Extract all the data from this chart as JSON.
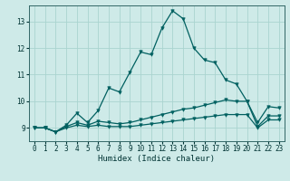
{
  "xlabel": "Humidex (Indice chaleur)",
  "background_color": "#ceeae8",
  "grid_color": "#aad4d0",
  "line_color": "#006060",
  "xlim": [
    -0.5,
    23.5
  ],
  "ylim": [
    8.5,
    13.6
  ],
  "yticks": [
    9,
    10,
    11,
    12,
    13
  ],
  "xticks": [
    0,
    1,
    2,
    3,
    4,
    5,
    6,
    7,
    8,
    9,
    10,
    11,
    12,
    13,
    14,
    15,
    16,
    17,
    18,
    19,
    20,
    21,
    22,
    23
  ],
  "series_main_x": [
    0,
    1,
    2,
    3,
    4,
    5,
    6,
    7,
    8,
    9,
    10,
    11,
    12,
    13,
    14,
    15,
    16,
    17,
    18,
    19,
    20,
    21,
    22,
    23
  ],
  "series_main_y": [
    9.0,
    9.0,
    8.85,
    9.1,
    9.55,
    9.2,
    9.65,
    10.5,
    10.35,
    11.1,
    11.85,
    11.75,
    12.75,
    13.4,
    13.1,
    12.0,
    11.55,
    11.45,
    10.8,
    10.65,
    10.0,
    9.2,
    9.8,
    9.75
  ],
  "series_mid_x": [
    0,
    1,
    2,
    3,
    4,
    5,
    6,
    7,
    8,
    9,
    10,
    11,
    12,
    13,
    14,
    15,
    16,
    17,
    18,
    19,
    20,
    21,
    22,
    23
  ],
  "series_mid_y": [
    9.0,
    9.0,
    8.85,
    9.05,
    9.2,
    9.1,
    9.25,
    9.2,
    9.15,
    9.2,
    9.3,
    9.4,
    9.5,
    9.6,
    9.7,
    9.75,
    9.85,
    9.95,
    10.05,
    10.0,
    10.0,
    9.05,
    9.45,
    9.45
  ],
  "series_flat_x": [
    0,
    1,
    2,
    3,
    4,
    5,
    6,
    7,
    8,
    9,
    10,
    11,
    12,
    13,
    14,
    15,
    16,
    17,
    18,
    19,
    20,
    21,
    22,
    23
  ],
  "series_flat_y": [
    9.0,
    9.0,
    8.85,
    9.0,
    9.1,
    9.05,
    9.1,
    9.05,
    9.05,
    9.05,
    9.1,
    9.15,
    9.2,
    9.25,
    9.3,
    9.35,
    9.4,
    9.45,
    9.5,
    9.5,
    9.5,
    9.0,
    9.3,
    9.3
  ]
}
